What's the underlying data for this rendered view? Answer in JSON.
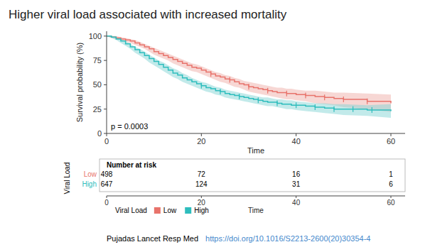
{
  "chart_data": {
    "type": "line",
    "title": "Higher viral load associated with increased mortality",
    "x_label": "Time",
    "y_label": "Survival probability (%)",
    "xlim": [
      0,
      63
    ],
    "ylim": [
      0,
      105
    ],
    "xticks": [
      0,
      20,
      40,
      60
    ],
    "yticks": [
      0,
      25,
      50,
      75,
      100
    ],
    "grid": false,
    "line_style": "step",
    "annotation": "p = 0.0003",
    "legend_title": "Viral Load",
    "series": [
      {
        "name": "Low",
        "color": "#e8736b",
        "fill_color": "#f0b0aa",
        "x": [
          0,
          1,
          2,
          3,
          4,
          5,
          6,
          7,
          8,
          9,
          10,
          11,
          12,
          13,
          14,
          15,
          16,
          17,
          18,
          19,
          20,
          21,
          22,
          23,
          24,
          25,
          26,
          27,
          28,
          29,
          30,
          31,
          32,
          33,
          34,
          35,
          36,
          37,
          38,
          39,
          40,
          42,
          44,
          46,
          48,
          50,
          55,
          60
        ],
        "values": [
          100,
          99,
          98,
          97,
          96,
          95,
          93,
          91,
          89,
          87,
          84,
          82,
          80,
          78,
          76,
          74,
          72,
          70,
          68,
          67,
          65,
          63,
          61,
          59,
          58,
          56,
          55,
          53,
          51,
          50,
          48,
          47,
          46,
          45,
          44,
          43,
          42,
          42,
          41,
          41,
          40,
          39,
          38,
          37,
          36,
          35,
          33,
          31
        ],
        "lower": [
          100,
          98,
          97,
          96,
          94,
          93,
          91,
          89,
          87,
          84,
          81,
          79,
          77,
          75,
          72,
          70,
          68,
          66,
          64,
          63,
          61,
          59,
          57,
          55,
          53,
          52,
          50,
          48,
          47,
          45,
          43,
          42,
          41,
          40,
          39,
          38,
          37,
          36,
          35,
          35,
          34,
          33,
          31,
          30,
          29,
          27,
          25,
          22
        ],
        "upper": [
          100,
          100,
          100,
          99,
          98,
          97,
          96,
          94,
          92,
          90,
          88,
          86,
          84,
          82,
          80,
          78,
          76,
          74,
          72,
          71,
          69,
          67,
          65,
          63,
          62,
          60,
          59,
          57,
          56,
          54,
          53,
          52,
          51,
          50,
          49,
          48,
          47,
          47,
          46,
          46,
          45,
          44,
          44,
          43,
          42,
          42,
          41,
          40
        ],
        "censor_times": [
          22,
          26,
          30,
          34,
          38,
          42,
          46,
          50,
          55
        ]
      },
      {
        "name": "High",
        "color": "#2ebdbd",
        "fill_color": "#85d5d5",
        "x": [
          0,
          1,
          2,
          3,
          4,
          5,
          6,
          7,
          8,
          9,
          10,
          11,
          12,
          13,
          14,
          15,
          16,
          17,
          18,
          19,
          20,
          21,
          22,
          23,
          24,
          25,
          26,
          27,
          28,
          29,
          30,
          31,
          32,
          33,
          34,
          35,
          36,
          37,
          38,
          39,
          40,
          42,
          44,
          46,
          48,
          50,
          55,
          60
        ],
        "values": [
          100,
          99,
          97,
          95,
          92,
          89,
          86,
          83,
          80,
          77,
          74,
          71,
          68,
          65,
          62,
          60,
          57,
          55,
          53,
          51,
          49,
          47,
          46,
          44,
          43,
          41,
          40,
          39,
          38,
          37,
          36,
          35,
          34,
          33,
          32,
          32,
          31,
          30,
          30,
          29,
          29,
          28,
          27,
          26,
          25,
          25,
          24,
          23
        ],
        "lower": [
          100,
          98,
          96,
          93,
          90,
          87,
          83,
          80,
          77,
          73,
          70,
          67,
          64,
          61,
          58,
          56,
          53,
          51,
          49,
          47,
          45,
          43,
          42,
          40,
          39,
          37,
          36,
          35,
          34,
          33,
          32,
          31,
          30,
          29,
          28,
          28,
          27,
          26,
          25,
          25,
          24,
          23,
          22,
          21,
          20,
          19,
          18,
          16
        ],
        "upper": [
          100,
          100,
          99,
          97,
          95,
          92,
          89,
          87,
          84,
          81,
          78,
          75,
          73,
          70,
          67,
          65,
          62,
          60,
          57,
          55,
          53,
          52,
          50,
          48,
          47,
          45,
          44,
          43,
          42,
          41,
          40,
          39,
          38,
          37,
          37,
          36,
          35,
          35,
          34,
          34,
          33,
          32,
          31,
          31,
          30,
          30,
          29,
          30
        ],
        "censor_times": [
          20,
          24,
          28,
          32,
          36,
          40,
          44,
          48,
          52,
          56
        ]
      }
    ],
    "risk_table": {
      "title": "Number at risk",
      "times": [
        0,
        20,
        40,
        60
      ],
      "rows": [
        {
          "values": [
            498,
            72,
            16,
            1
          ]
        },
        {
          "values": [
            647,
            124,
            31,
            6
          ]
        }
      ]
    },
    "footer": "Pujadas Lancet Resp Med",
    "source_url": "https://doi.org/10.1016/S2213-2600(20)30354-4"
  }
}
